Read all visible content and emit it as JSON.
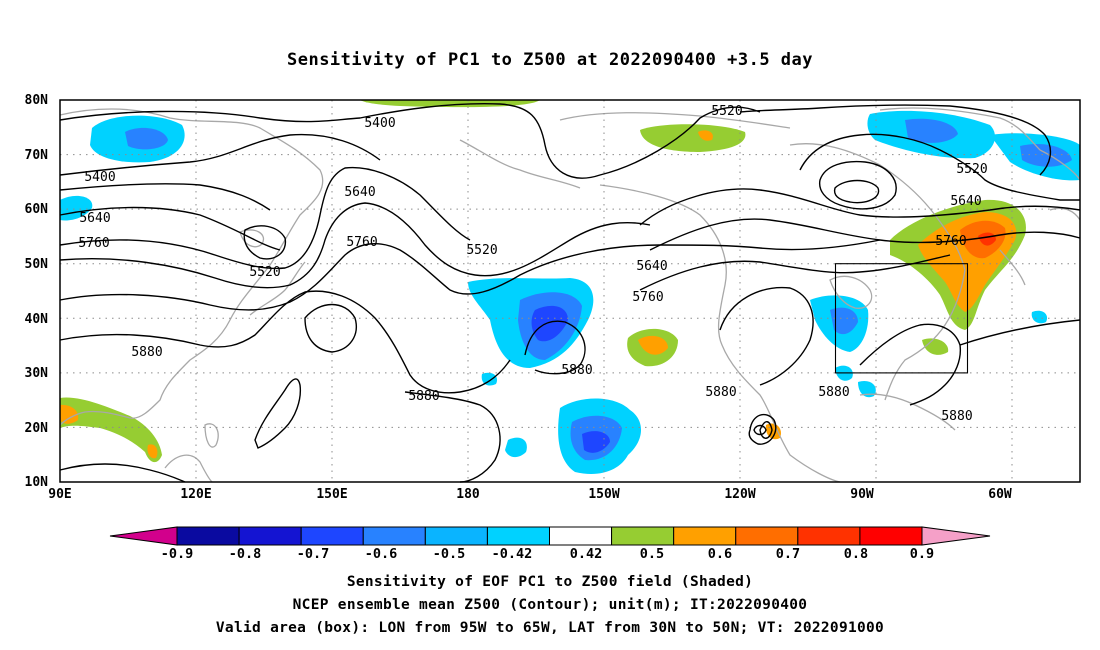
{
  "title": "Sensitivity of PC1 to Z500 at 2022090400 +3.5 day",
  "map": {
    "lat_labels": [
      "80N",
      "70N",
      "60N",
      "50N",
      "40N",
      "30N",
      "20N",
      "10N"
    ],
    "lon_labels": [
      "90E",
      "120E",
      "150E",
      "180",
      "150W",
      "120W",
      "90W",
      "60W"
    ],
    "contour_labels": [
      "5400",
      "5400",
      "5520",
      "5520",
      "5520",
      "5520",
      "5640",
      "5640",
      "5640",
      "5640",
      "5760",
      "5760",
      "5760",
      "5760",
      "5880",
      "5880",
      "5880",
      "5880",
      "5880",
      "5880"
    ],
    "valid_box": {
      "lon_from": "95W",
      "lon_to": "65W",
      "lat_from": "30N",
      "lat_to": "50N"
    }
  },
  "colorbar": {
    "labels": [
      "-0.9",
      "-0.8",
      "-0.7",
      "-0.6",
      "-0.5",
      "-0.42",
      "0.42",
      "0.5",
      "0.6",
      "0.7",
      "0.8",
      "0.9"
    ],
    "colors": [
      "#0a0aa0",
      "#1414d2",
      "#1e46ff",
      "#2882ff",
      "#0ab4ff",
      "#00d2ff",
      "#ffffff",
      "#96cd32",
      "#ffa000",
      "#ff6e00",
      "#ff3200",
      "#ff0000"
    ],
    "low_color": "#d2008c",
    "high_color": "#f5a0c8"
  },
  "captions": {
    "line1": "Sensitivity of EOF PC1 to Z500 field (Shaded)",
    "line2": "NCEP ensemble mean Z500 (Contour); unit(m); IT:2022090400",
    "line3": "Valid area (box): LON from 95W to 65W, LAT from 30N to 50N; VT: 2022091000"
  }
}
